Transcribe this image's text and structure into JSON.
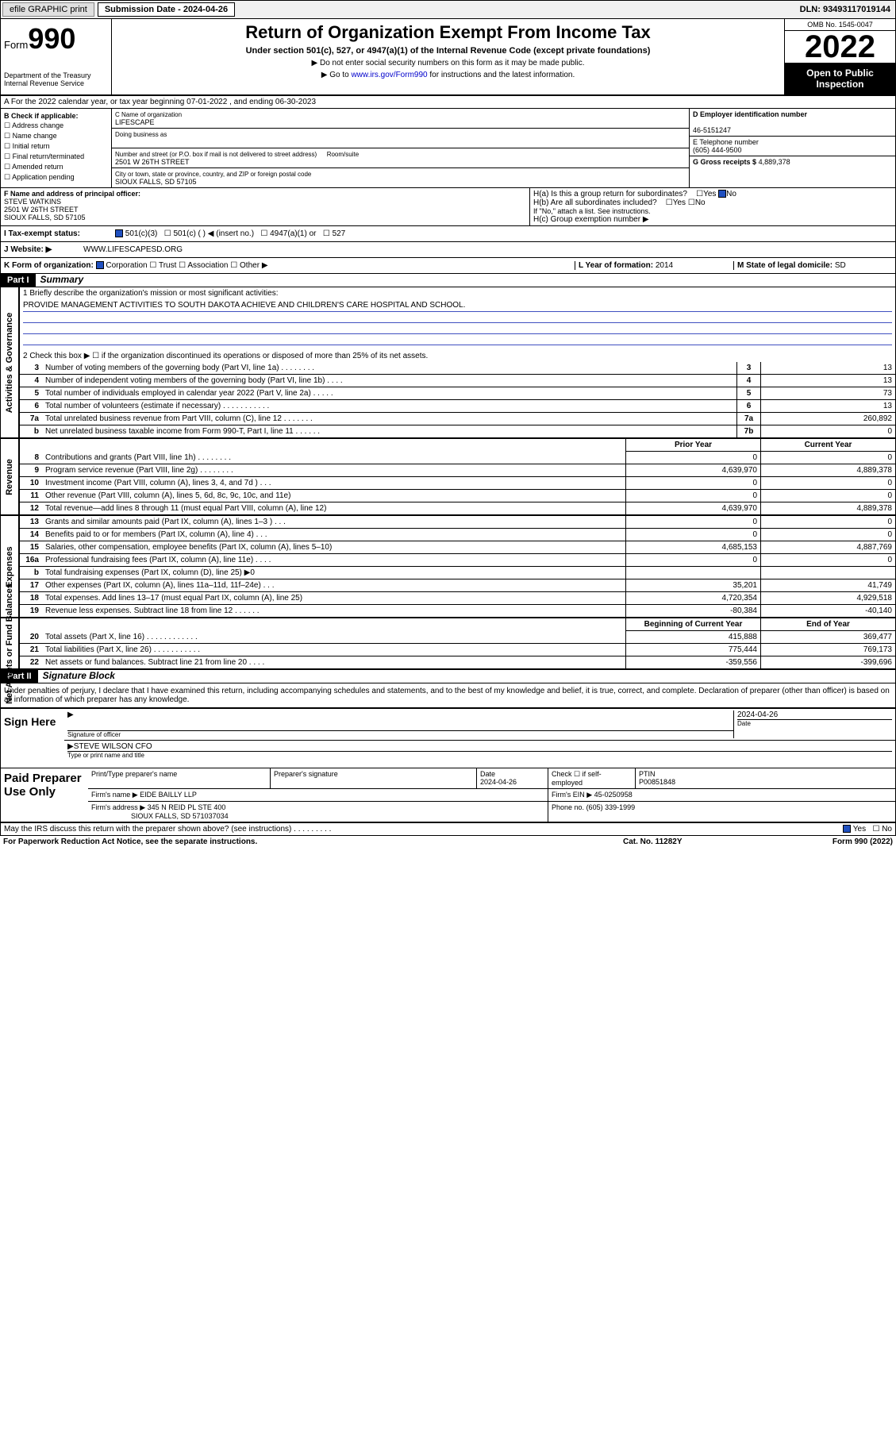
{
  "top_bar": {
    "efile": "efile GRAPHIC print",
    "sub_label": "Submission Date - 2024-04-26",
    "dln": "DLN: 93493117019144"
  },
  "header": {
    "form_word": "Form",
    "form_num": "990",
    "dept": "Department of the Treasury Internal Revenue Service",
    "title": "Return of Organization Exempt From Income Tax",
    "line2": "Under section 501(c), 527, or 4947(a)(1) of the Internal Revenue Code (except private foundations)",
    "line3": "▶ Do not enter social security numbers on this form as it may be made public.",
    "line4_pre": "▶ Go to ",
    "line4_link": "www.irs.gov/Form990",
    "line4_post": " for instructions and the latest information.",
    "omb": "OMB No. 1545-0047",
    "year": "2022",
    "open": "Open to Public Inspection"
  },
  "row_a": "A For the 2022 calendar year, or tax year beginning 07-01-2022   , and ending 06-30-2023",
  "section_b": {
    "b_hdr": "B Check if applicable:",
    "checks": [
      "Address change",
      "Name change",
      "Initial return",
      "Final return/terminated",
      "Amended return",
      "Application pending"
    ],
    "c_label": "C Name of organization",
    "c_value": "LIFESCAPE",
    "dba_label": "Doing business as",
    "addr_label": "Number and street (or P.O. box if mail is not delivered to street address)",
    "room_label": "Room/suite",
    "addr": "2501 W 26TH STREET",
    "city_label": "City or town, state or province, country, and ZIP or foreign postal code",
    "city": "SIOUX FALLS, SD  57105",
    "d_label": "D Employer identification number",
    "d_value": "46-5151247",
    "e_label": "E Telephone number",
    "e_value": "(605) 444-9500",
    "g_label": "G Gross receipts $",
    "g_value": "4,889,378"
  },
  "section_f": {
    "f_label": "F Name and address of principal officer:",
    "f_name": "STEVE WATKINS",
    "f_addr1": "2501 W 26TH STREET",
    "f_addr2": "SIOUX FALLS, SD  57105",
    "ha_label": "H(a)  Is this a group return for subordinates?",
    "ha_yes": "Yes",
    "ha_no": "No",
    "hb_label": "H(b)  Are all subordinates included?",
    "hb_note": "If \"No,\" attach a list. See instructions.",
    "hc_label": "H(c)  Group exemption number ▶"
  },
  "row_i": {
    "label": "I  Tax-exempt status:",
    "opts": [
      "501(c)(3)",
      "501(c) (  ) ◀ (insert no.)",
      "4947(a)(1) or",
      "527"
    ]
  },
  "row_j": {
    "label": "J  Website: ▶",
    "value": "WWW.LIFESCAPESD.ORG"
  },
  "row_k": {
    "k_label": "K Form of organization:",
    "k_opts": [
      "Corporation",
      "Trust",
      "Association",
      "Other ▶"
    ],
    "l_label": "L Year of formation:",
    "l_value": "2014",
    "m_label": "M State of legal domicile:",
    "m_value": "SD"
  },
  "part1": {
    "hdr": "Part I",
    "title": "Summary",
    "q1_label": "1  Briefly describe the organization's mission or most significant activities:",
    "q1_value": "PROVIDE MANAGEMENT ACTIVITIES TO SOUTH DAKOTA ACHIEVE AND CHILDREN'S CARE HOSPITAL AND SCHOOL.",
    "q2": "2  Check this box ▶ ☐  if the organization discontinued its operations or disposed of more than 25% of its net assets.",
    "sections": {
      "governance": {
        "label": "Activities & Governance",
        "rows": [
          {
            "n": "3",
            "t": "Number of voting members of the governing body (Part VI, line 1a)  .   .   .   .   .   .   .   .",
            "box": "3",
            "v": "13"
          },
          {
            "n": "4",
            "t": "Number of independent voting members of the governing body (Part VI, line 1b)  .   .   .   .",
            "box": "4",
            "v": "13"
          },
          {
            "n": "5",
            "t": "Total number of individuals employed in calendar year 2022 (Part V, line 2a)  .   .   .   .   .",
            "box": "5",
            "v": "73"
          },
          {
            "n": "6",
            "t": "Total number of volunteers (estimate if necessary)  .   .   .   .   .   .   .   .   .   .   .",
            "box": "6",
            "v": "13"
          },
          {
            "n": "7a",
            "t": "Total unrelated business revenue from Part VIII, column (C), line 12  .   .   .   .   .   .   .",
            "box": "7a",
            "v": "260,892"
          },
          {
            "n": "b",
            "t": "Net unrelated business taxable income from Form 990-T, Part I, line 11  .   .   .   .   .   .",
            "box": "7b",
            "v": "0"
          }
        ]
      },
      "revenue": {
        "label": "Revenue",
        "prior_hdr": "Prior Year",
        "curr_hdr": "Current Year",
        "rows": [
          {
            "n": "8",
            "t": "Contributions and grants (Part VIII, line 1h)  .   .   .   .   .   .   .   .",
            "p": "0",
            "c": "0"
          },
          {
            "n": "9",
            "t": "Program service revenue (Part VIII, line 2g)  .   .   .   .   .   .   .   .",
            "p": "4,639,970",
            "c": "4,889,378"
          },
          {
            "n": "10",
            "t": "Investment income (Part VIII, column (A), lines 3, 4, and 7d )  .   .   .",
            "p": "0",
            "c": "0"
          },
          {
            "n": "11",
            "t": "Other revenue (Part VIII, column (A), lines 5, 6d, 8c, 9c, 10c, and 11e)",
            "p": "0",
            "c": "0"
          },
          {
            "n": "12",
            "t": "Total revenue—add lines 8 through 11 (must equal Part VIII, column (A), line 12)",
            "p": "4,639,970",
            "c": "4,889,378"
          }
        ]
      },
      "expenses": {
        "label": "Expenses",
        "rows": [
          {
            "n": "13",
            "t": "Grants and similar amounts paid (Part IX, column (A), lines 1–3 )  .   .   .",
            "p": "0",
            "c": "0"
          },
          {
            "n": "14",
            "t": "Benefits paid to or for members (Part IX, column (A), line 4)  .   .   .",
            "p": "0",
            "c": "0"
          },
          {
            "n": "15",
            "t": "Salaries, other compensation, employee benefits (Part IX, column (A), lines 5–10)",
            "p": "4,685,153",
            "c": "4,887,769"
          },
          {
            "n": "16a",
            "t": "Professional fundraising fees (Part IX, column (A), line 11e)  .   .   .   .",
            "p": "0",
            "c": "0"
          },
          {
            "n": "b",
            "t": "Total fundraising expenses (Part IX, column (D), line 25) ▶0",
            "p": "",
            "c": ""
          },
          {
            "n": "17",
            "t": "Other expenses (Part IX, column (A), lines 11a–11d, 11f–24e)  .   .   .",
            "p": "35,201",
            "c": "41,749"
          },
          {
            "n": "18",
            "t": "Total expenses. Add lines 13–17 (must equal Part IX, column (A), line 25)",
            "p": "4,720,354",
            "c": "4,929,518"
          },
          {
            "n": "19",
            "t": "Revenue less expenses. Subtract line 18 from line 12  .   .   .   .   .   .",
            "p": "-80,384",
            "c": "-40,140"
          }
        ]
      },
      "netassets": {
        "label": "Net Assets or Fund Balances",
        "begin_hdr": "Beginning of Current Year",
        "end_hdr": "End of Year",
        "rows": [
          {
            "n": "20",
            "t": "Total assets (Part X, line 16)  .   .   .   .   .   .   .   .   .   .   .   .",
            "p": "415,888",
            "c": "369,477"
          },
          {
            "n": "21",
            "t": "Total liabilities (Part X, line 26)  .   .   .   .   .   .   .   .   .   .   .",
            "p": "775,444",
            "c": "769,173"
          },
          {
            "n": "22",
            "t": "Net assets or fund balances. Subtract line 21 from line 20  .   .   .   .",
            "p": "-359,556",
            "c": "-399,696"
          }
        ]
      }
    }
  },
  "part2": {
    "hdr": "Part II",
    "title": "Signature Block",
    "declare": "Under penalties of perjury, I declare that I have examined this return, including accompanying schedules and statements, and to the best of my knowledge and belief, it is true, correct, and complete. Declaration of preparer (other than officer) is based on all information of which preparer has any knowledge.",
    "sign_here": "Sign Here",
    "sig_officer": "Signature of officer",
    "sig_date": "2024-04-26",
    "sig_date_label": "Date",
    "sig_name": "STEVE WILSON CFO",
    "sig_name_label": "Type or print name and title",
    "paid": "Paid Preparer Use Only",
    "prep_name_label": "Print/Type preparer's name",
    "prep_sig_label": "Preparer's signature",
    "prep_date_label": "Date",
    "prep_date": "2024-04-26",
    "check_if": "Check ☐ if self-employed",
    "ptin_label": "PTIN",
    "ptin": "P00851848",
    "firm_name_label": "Firm's name    ▶",
    "firm_name": "EIDE BAILLY LLP",
    "firm_ein_label": "Firm's EIN ▶",
    "firm_ein": "45-0250958",
    "firm_addr_label": "Firm's address ▶",
    "firm_addr1": "345 N REID PL STE 400",
    "firm_addr2": "SIOUX FALLS, SD  571037034",
    "firm_phone_label": "Phone no.",
    "firm_phone": "(605) 339-1999",
    "may_irs": "May the IRS discuss this return with the preparer shown above? (see instructions)  .   .   .   .   .   .   .   .   .",
    "yes": "Yes",
    "no": "No"
  },
  "footer": {
    "left": "For Paperwork Reduction Act Notice, see the separate instructions.",
    "mid": "Cat. No. 11282Y",
    "right": "Form 990 (2022)"
  }
}
